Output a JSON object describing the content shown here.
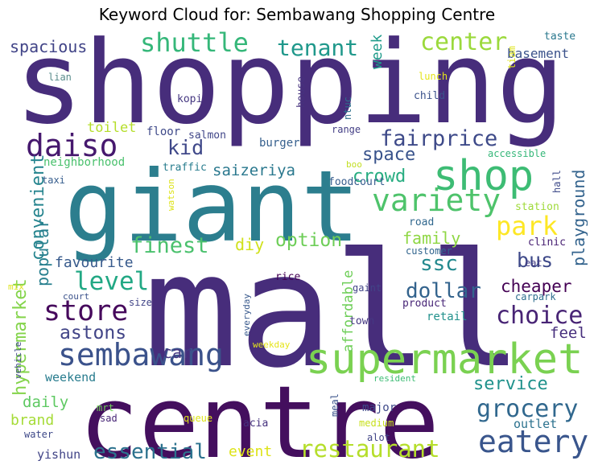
{
  "chart_data": {
    "type": "wordcloud",
    "title": "Keyword Cloud for: Sembawang Shopping Centre",
    "words": [
      {
        "text": "shopping",
        "color": "#472d7b"
      },
      {
        "text": "mall",
        "color": "#472d7b"
      },
      {
        "text": "giant",
        "color": "#2c7e8e"
      },
      {
        "text": "centre",
        "color": "#440f5e"
      },
      {
        "text": "supermarket",
        "color": "#7ad151"
      },
      {
        "text": "shop",
        "color": "#3dbc74"
      },
      {
        "text": "sembawang",
        "color": "#3b528b"
      },
      {
        "text": "daiso",
        "color": "#46186e"
      },
      {
        "text": "variety",
        "color": "#4ec36b"
      },
      {
        "text": "eatery",
        "color": "#39558c"
      },
      {
        "text": "restaurant",
        "color": "#b5de2b"
      },
      {
        "text": "shuttle",
        "color": "#35b779"
      },
      {
        "text": "center",
        "color": "#9bd93c"
      },
      {
        "text": "tenant",
        "color": "#1f988b"
      },
      {
        "text": "fairprice",
        "color": "#3e4a89"
      },
      {
        "text": "store",
        "color": "#46085c"
      },
      {
        "text": "park",
        "color": "#fde725"
      },
      {
        "text": "choice",
        "color": "#482475"
      },
      {
        "text": "grocery",
        "color": "#31688e"
      },
      {
        "text": "level",
        "color": "#22a884"
      },
      {
        "text": "finest",
        "color": "#4ac16d"
      },
      {
        "text": "essential",
        "color": "#2c728e"
      },
      {
        "text": "kid",
        "color": "#3f4889"
      },
      {
        "text": "ssc",
        "color": "#23898e"
      },
      {
        "text": "dollar",
        "color": "#33638d"
      },
      {
        "text": "bus",
        "color": "#3e4989"
      },
      {
        "text": "astons",
        "color": "#414487"
      },
      {
        "text": "option",
        "color": "#6ece58"
      },
      {
        "text": "cheaper",
        "color": "#440154"
      },
      {
        "text": "service",
        "color": "#20928c"
      },
      {
        "text": "hypermarket",
        "color": "#84d44b"
      },
      {
        "text": "convenient",
        "color": "#25848e"
      },
      {
        "text": "saizeriya",
        "color": "#2a788e"
      },
      {
        "text": "crowd",
        "color": "#27ad81"
      },
      {
        "text": "space",
        "color": "#3a548c"
      },
      {
        "text": "popular",
        "color": "#277f8e"
      },
      {
        "text": "family",
        "color": "#8fd744"
      },
      {
        "text": "playground",
        "color": "#33638d"
      },
      {
        "text": "favourite",
        "color": "#375a8c"
      },
      {
        "text": "diy",
        "color": "#d0e11c"
      },
      {
        "text": "spacious",
        "color": "#414487"
      },
      {
        "text": "week",
        "color": "#1e9b8a"
      },
      {
        "text": "basement",
        "color": "#3b528b"
      },
      {
        "text": "car",
        "color": "#453882"
      },
      {
        "text": "feel",
        "color": "#472f7d"
      },
      {
        "text": "daily",
        "color": "#5ec962"
      },
      {
        "text": "brand",
        "color": "#a5db36"
      },
      {
        "text": "event",
        "color": "#dde318"
      },
      {
        "text": "toilet",
        "color": "#b5de2b"
      },
      {
        "text": "affordable",
        "color": "#6ece58"
      },
      {
        "text": "weekend",
        "color": "#287c8e"
      },
      {
        "text": "outlet",
        "color": "#2c728e"
      },
      {
        "text": "yishun",
        "color": "#414487"
      },
      {
        "text": "taste",
        "color": "#2a788e"
      },
      {
        "text": "lian",
        "color": "#5a8c8c"
      },
      {
        "text": "lunch",
        "color": "#e5e419"
      },
      {
        "text": "child",
        "color": "#3b528b"
      },
      {
        "text": "tiam",
        "color": "#dde318"
      },
      {
        "text": "kopi",
        "color": "#453781"
      },
      {
        "text": "house",
        "color": "#46327e"
      },
      {
        "text": "floor",
        "color": "#3e4989"
      },
      {
        "text": "salmon",
        "color": "#404688"
      },
      {
        "text": "range",
        "color": "#433e85"
      },
      {
        "text": "ntuc",
        "color": "#2d708e"
      },
      {
        "text": "burger",
        "color": "#355f8d"
      },
      {
        "text": "neighborhood",
        "color": "#4ac16d"
      },
      {
        "text": "traffic",
        "color": "#287d8e"
      },
      {
        "text": "taxi",
        "color": "#365d8d"
      },
      {
        "text": "watson",
        "color": "#dde318"
      },
      {
        "text": "boo",
        "color": "#c2df23"
      },
      {
        "text": "foodcourt",
        "color": "#365c8d"
      },
      {
        "text": "accessible",
        "color": "#35b779"
      },
      {
        "text": "hall",
        "color": "#3e4a89"
      },
      {
        "text": "station",
        "color": "#9fda3a"
      },
      {
        "text": "road",
        "color": "#31688e"
      },
      {
        "text": "clinic",
        "color": "#482173"
      },
      {
        "text": "customer",
        "color": "#32658e"
      },
      {
        "text": "eat",
        "color": "#433d84"
      },
      {
        "text": "mix",
        "color": "#dde318"
      },
      {
        "text": "court",
        "color": "#3b528b"
      },
      {
        "text": "rice",
        "color": "#440154"
      },
      {
        "text": "gaint",
        "color": "#414487"
      },
      {
        "text": "carpark",
        "color": "#2e6d8e"
      },
      {
        "text": "product",
        "color": "#482677"
      },
      {
        "text": "retail",
        "color": "#21918c"
      },
      {
        "text": "everyday",
        "color": "#38598c"
      },
      {
        "text": "size",
        "color": "#414487"
      },
      {
        "text": "town",
        "color": "#453882"
      },
      {
        "text": "vehicle",
        "color": "#3f4889"
      },
      {
        "text": "weekday",
        "color": "#e5e419"
      },
      {
        "text": "resident",
        "color": "#3dbc74"
      },
      {
        "text": "mrt",
        "color": "#6ece58"
      },
      {
        "text": "meal",
        "color": "#3b528b"
      },
      {
        "text": "major",
        "color": "#3e4989"
      },
      {
        "text": "sad",
        "color": "#482677"
      },
      {
        "text": "queue",
        "color": "#dde318"
      },
      {
        "text": "acia",
        "color": "#46327e"
      },
      {
        "text": "medium",
        "color": "#c8e020"
      },
      {
        "text": "water",
        "color": "#3e4989"
      },
      {
        "text": "alot",
        "color": "#414487"
      }
    ]
  }
}
